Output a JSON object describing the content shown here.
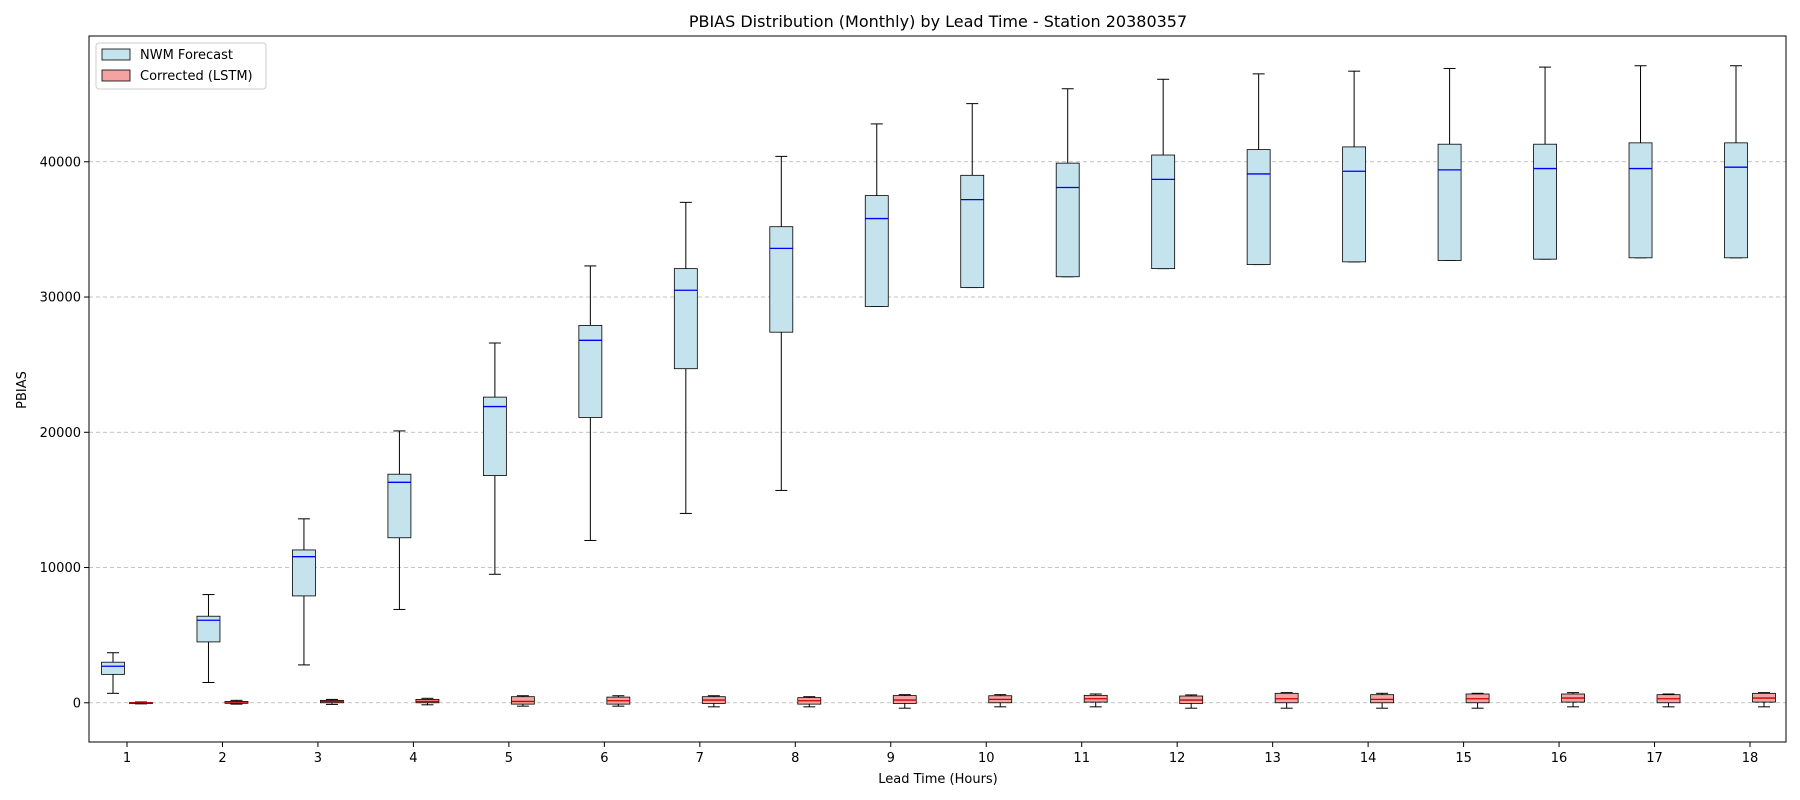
{
  "chart_data": {
    "type": "boxplot",
    "title": "PBIAS Distribution (Monthly) by Lead Time - Station 20380357",
    "xlabel": "Lead Time (Hours)",
    "ylabel": "PBIAS",
    "categories": [
      "1",
      "2",
      "3",
      "4",
      "5",
      "6",
      "7",
      "8",
      "9",
      "10",
      "11",
      "12",
      "13",
      "14",
      "15",
      "16",
      "17",
      "18"
    ],
    "ylim": [
      -2900,
      49300
    ],
    "yticks": [
      0,
      10000,
      20000,
      30000,
      40000
    ],
    "ytick_labels": [
      "0",
      "10000",
      "20000",
      "30000",
      "40000"
    ],
    "grid": "y-dashed",
    "legend_position": "top-left",
    "series": [
      {
        "name": "NWM Forecast",
        "color": "#c5e3ec",
        "median_color": "#0000ff",
        "boxes": [
          {
            "whislo": 700,
            "q1": 2100,
            "med": 2700,
            "q3": 3000,
            "whishi": 3700
          },
          {
            "whislo": 1500,
            "q1": 4500,
            "med": 6100,
            "q3": 6400,
            "whishi": 8000
          },
          {
            "whislo": 2800,
            "q1": 7900,
            "med": 10800,
            "q3": 11300,
            "whishi": 13600
          },
          {
            "whislo": 6900,
            "q1": 12200,
            "med": 16300,
            "q3": 16900,
            "whishi": 20100
          },
          {
            "whislo": 9500,
            "q1": 16800,
            "med": 21900,
            "q3": 22600,
            "whishi": 26600
          },
          {
            "whislo": 12000,
            "q1": 21100,
            "med": 26800,
            "q3": 27900,
            "whishi": 32300
          },
          {
            "whislo": 14000,
            "q1": 24700,
            "med": 30500,
            "q3": 32100,
            "whishi": 37000
          },
          {
            "whislo": 15700,
            "q1": 27400,
            "med": 33600,
            "q3": 35200,
            "whishi": 40400
          },
          {
            "whislo": 29300,
            "q1": 29300,
            "med": 35800,
            "q3": 37500,
            "whishi": 42800
          },
          {
            "whislo": 30700,
            "q1": 30700,
            "med": 37200,
            "q3": 39000,
            "whishi": 44300
          },
          {
            "whislo": 31500,
            "q1": 31500,
            "med": 38100,
            "q3": 39900,
            "whishi": 45400
          },
          {
            "whislo": 32100,
            "q1": 32100,
            "med": 38700,
            "q3": 40500,
            "whishi": 46100
          },
          {
            "whislo": 32400,
            "q1": 32400,
            "med": 39100,
            "q3": 40900,
            "whishi": 46500
          },
          {
            "whislo": 32600,
            "q1": 32600,
            "med": 39300,
            "q3": 41100,
            "whishi": 46700
          },
          {
            "whislo": 32700,
            "q1": 32700,
            "med": 39400,
            "q3": 41300,
            "whishi": 46900
          },
          {
            "whislo": 32800,
            "q1": 32800,
            "med": 39500,
            "q3": 41300,
            "whishi": 47000
          },
          {
            "whislo": 32900,
            "q1": 32900,
            "med": 39500,
            "q3": 41400,
            "whishi": 47100
          },
          {
            "whislo": 32900,
            "q1": 32900,
            "med": 39600,
            "q3": 41400,
            "whishi": 47100
          }
        ]
      },
      {
        "name": "Corrected (LSTM)",
        "color": "#f4a3a3",
        "median_color": "#cc0000",
        "boxes": [
          {
            "whislo": -80,
            "q1": -40,
            "med": 0,
            "q3": 20,
            "whishi": 60
          },
          {
            "whislo": -100,
            "q1": -40,
            "med": 50,
            "q3": 100,
            "whishi": 180
          },
          {
            "whislo": -120,
            "q1": 0,
            "med": 100,
            "q3": 180,
            "whishi": 250
          },
          {
            "whislo": -150,
            "q1": 0,
            "med": 100,
            "q3": 250,
            "whishi": 330
          },
          {
            "whislo": -250,
            "q1": -100,
            "med": 100,
            "q3": 450,
            "whishi": 520
          },
          {
            "whislo": -250,
            "q1": -100,
            "med": 150,
            "q3": 420,
            "whishi": 520
          },
          {
            "whislo": -300,
            "q1": -50,
            "med": 200,
            "q3": 450,
            "whishi": 520
          },
          {
            "whislo": -300,
            "q1": -100,
            "med": 150,
            "q3": 380,
            "whishi": 450
          },
          {
            "whislo": -400,
            "q1": -50,
            "med": 200,
            "q3": 530,
            "whishi": 600
          },
          {
            "whislo": -300,
            "q1": 0,
            "med": 250,
            "q3": 520,
            "whishi": 600
          },
          {
            "whislo": -300,
            "q1": 50,
            "med": 300,
            "q3": 550,
            "whishi": 650
          },
          {
            "whislo": -400,
            "q1": -50,
            "med": 200,
            "q3": 500,
            "whishi": 580
          },
          {
            "whislo": -400,
            "q1": 0,
            "med": 300,
            "q3": 700,
            "whishi": 750
          },
          {
            "whislo": -400,
            "q1": 0,
            "med": 250,
            "q3": 600,
            "whishi": 700
          },
          {
            "whislo": -400,
            "q1": 0,
            "med": 300,
            "q3": 650,
            "whishi": 700
          },
          {
            "whislo": -300,
            "q1": 50,
            "med": 350,
            "q3": 650,
            "whishi": 750
          },
          {
            "whislo": -300,
            "q1": 0,
            "med": 300,
            "q3": 600,
            "whishi": 650
          },
          {
            "whislo": -300,
            "q1": 50,
            "med": 350,
            "q3": 700,
            "whishi": 750
          }
        ]
      }
    ]
  }
}
